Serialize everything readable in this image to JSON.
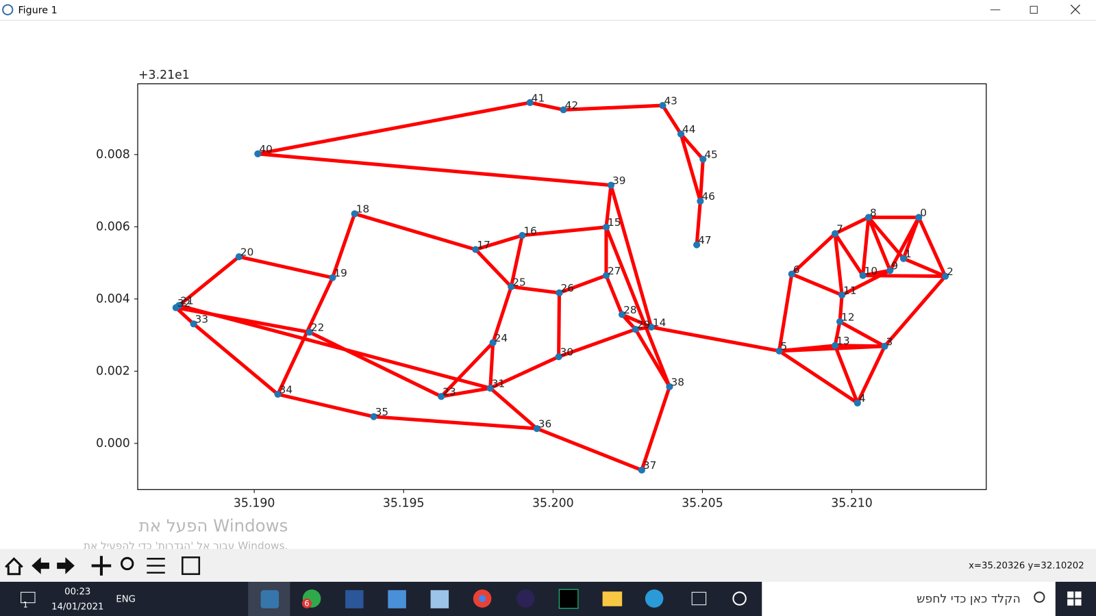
{
  "window": {
    "title": "Figure 1",
    "status": "x=35.20326 y=32.10202",
    "watermark_title": "הפעל את Windows",
    "watermark_text": "עבור אל 'הגדרות' כדי להפעיל את Windows.",
    "taskbar": {
      "time": "00:23",
      "date": "14/01/2021",
      "language": "ENG",
      "search": "הקלד כאן כדי לחפש",
      "badge": "6",
      "notifications": "1"
    }
  },
  "chart_data": {
    "type": "scatter",
    "offset_text": "+3.21e1",
    "color": "#1f77b4",
    "edge_color": "#ff0000",
    "point_labels": [
      "0",
      "1",
      "2",
      "3",
      "4",
      "5",
      "6",
      "7",
      "8",
      "9",
      "10",
      "11",
      "12",
      "13",
      "14",
      "15",
      "16",
      "17",
      "18",
      "19",
      "20",
      "21",
      "22",
      "23",
      "24",
      "25",
      "26",
      "27",
      "28",
      "29",
      "30",
      "31",
      "32",
      "33",
      "34",
      "35",
      "36",
      "37",
      "38",
      "39",
      "40",
      "41",
      "42",
      "43",
      "44",
      "45",
      "46",
      "47"
    ],
    "x": [
      35.21224,
      35.21173,
      35.21313,
      35.2111,
      35.21019,
      35.20757,
      35.20799,
      35.20944,
      35.21056,
      35.21128,
      35.21037,
      35.20967,
      35.2096,
      35.20944,
      35.20329,
      35.20178,
      35.19897,
      35.19741,
      35.19336,
      35.19262,
      35.18949,
      35.18748,
      35.19185,
      35.19626,
      35.19799,
      35.1986,
      35.20021,
      35.20178,
      35.20231,
      35.20276,
      35.20019,
      35.1979,
      35.18738,
      35.18797,
      35.19079,
      35.194,
      35.19946,
      35.20297,
      35.2039,
      35.20194,
      35.19012,
      35.19923,
      35.20035,
      35.20367,
      35.20428,
      35.20502,
      35.20493,
      35.20481
    ],
    "y": [
      0.00626,
      0.00512,
      0.00463,
      0.00269,
      0.00112,
      0.00256,
      0.00469,
      0.00581,
      0.00626,
      0.00479,
      0.00465,
      0.00411,
      0.00337,
      0.00271,
      0.00322,
      0.00599,
      0.00576,
      0.00537,
      0.00636,
      0.00459,
      0.00517,
      0.00382,
      0.00308,
      0.0013,
      0.00279,
      0.00434,
      0.00417,
      0.00465,
      0.00357,
      0.00316,
      0.0024,
      0.00153,
      0.00376,
      0.00331,
      0.00136,
      0.00074,
      0.00041,
      -0.00074,
      0.00157,
      0.00715,
      0.00802,
      0.00944,
      0.00924,
      0.00936,
      0.00857,
      0.00787,
      0.00671,
      0.0055
    ],
    "edges": [
      [
        40,
        41
      ],
      [
        41,
        42
      ],
      [
        42,
        43
      ],
      [
        43,
        44
      ],
      [
        44,
        45
      ],
      [
        44,
        46
      ],
      [
        45,
        46
      ],
      [
        46,
        47
      ],
      [
        40,
        39
      ],
      [
        39,
        15
      ],
      [
        39,
        14
      ],
      [
        15,
        38
      ],
      [
        15,
        27
      ],
      [
        15,
        16
      ],
      [
        16,
        17
      ],
      [
        16,
        25
      ],
      [
        17,
        25
      ],
      [
        17,
        18
      ],
      [
        18,
        19
      ],
      [
        19,
        34
      ],
      [
        19,
        20
      ],
      [
        20,
        21
      ],
      [
        21,
        31
      ],
      [
        32,
        22
      ],
      [
        22,
        23
      ],
      [
        32,
        33
      ],
      [
        33,
        34
      ],
      [
        34,
        35
      ],
      [
        35,
        36
      ],
      [
        36,
        31
      ],
      [
        36,
        37
      ],
      [
        37,
        38
      ],
      [
        38,
        29
      ],
      [
        29,
        14
      ],
      [
        14,
        5
      ],
      [
        28,
        29
      ],
      [
        27,
        28
      ],
      [
        27,
        26
      ],
      [
        28,
        14
      ],
      [
        26,
        25
      ],
      [
        26,
        30
      ],
      [
        30,
        29
      ],
      [
        30,
        31
      ],
      [
        31,
        24
      ],
      [
        31,
        23
      ],
      [
        23,
        24
      ],
      [
        24,
        25
      ],
      [
        5,
        6
      ],
      [
        5,
        13
      ],
      [
        5,
        3
      ],
      [
        5,
        4
      ],
      [
        6,
        7
      ],
      [
        6,
        11
      ],
      [
        7,
        8
      ],
      [
        7,
        11
      ],
      [
        7,
        10
      ],
      [
        8,
        0
      ],
      [
        8,
        10
      ],
      [
        8,
        9
      ],
      [
        8,
        1
      ],
      [
        0,
        9
      ],
      [
        0,
        1
      ],
      [
        0,
        2
      ],
      [
        1,
        2
      ],
      [
        10,
        9
      ],
      [
        10,
        2
      ],
      [
        9,
        11
      ],
      [
        11,
        12
      ],
      [
        12,
        3
      ],
      [
        12,
        13
      ],
      [
        13,
        3
      ],
      [
        13,
        4
      ],
      [
        3,
        4
      ],
      [
        3,
        2
      ]
    ],
    "xlim": [
      35.1861,
      35.2145
    ],
    "ylim": [
      -0.00128,
      0.00996
    ],
    "xticks": [
      {
        "value": 35.19,
        "label": "35.190"
      },
      {
        "value": 35.195,
        "label": "35.195"
      },
      {
        "value": 35.2,
        "label": "35.200"
      },
      {
        "value": 35.205,
        "label": "35.205"
      },
      {
        "value": 35.21,
        "label": "35.210"
      }
    ],
    "yticks": [
      {
        "value": 0,
        "label": "0.000"
      },
      0.002,
      0.004,
      0.006,
      0.008
    ]
  }
}
